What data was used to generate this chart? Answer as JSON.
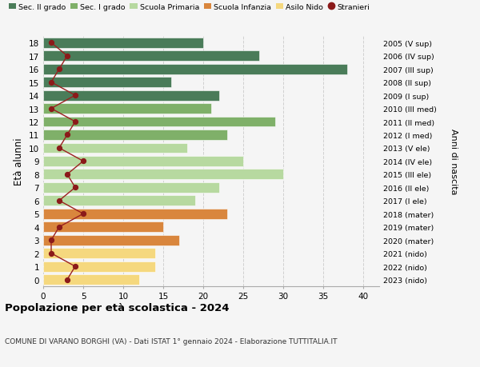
{
  "ages": [
    18,
    17,
    16,
    15,
    14,
    13,
    12,
    11,
    10,
    9,
    8,
    7,
    6,
    5,
    4,
    3,
    2,
    1,
    0
  ],
  "right_labels": [
    "2005 (V sup)",
    "2006 (IV sup)",
    "2007 (III sup)",
    "2008 (II sup)",
    "2009 (I sup)",
    "2010 (III med)",
    "2011 (II med)",
    "2012 (I med)",
    "2013 (V ele)",
    "2014 (IV ele)",
    "2015 (III ele)",
    "2016 (II ele)",
    "2017 (I ele)",
    "2018 (mater)",
    "2019 (mater)",
    "2020 (mater)",
    "2021 (nido)",
    "2022 (nido)",
    "2023 (nido)"
  ],
  "bar_values": [
    20,
    27,
    38,
    16,
    22,
    21,
    29,
    23,
    18,
    25,
    30,
    22,
    19,
    23,
    15,
    17,
    14,
    14,
    12
  ],
  "bar_colors": [
    "#4a7c59",
    "#4a7c59",
    "#4a7c59",
    "#4a7c59",
    "#4a7c59",
    "#7fb069",
    "#7fb069",
    "#7fb069",
    "#b7d9a0",
    "#b7d9a0",
    "#b7d9a0",
    "#b7d9a0",
    "#b7d9a0",
    "#d9863d",
    "#d9863d",
    "#d9863d",
    "#f5d87e",
    "#f5d87e",
    "#f5d87e"
  ],
  "stranieri_values": [
    1,
    3,
    2,
    1,
    4,
    1,
    4,
    3,
    2,
    5,
    3,
    4,
    2,
    5,
    2,
    1,
    1,
    4,
    3
  ],
  "legend_labels": [
    "Sec. II grado",
    "Sec. I grado",
    "Scuola Primaria",
    "Scuola Infanzia",
    "Asilo Nido",
    "Stranieri"
  ],
  "legend_colors": [
    "#4a7c59",
    "#7fb069",
    "#b7d9a0",
    "#d9863d",
    "#f5d87e",
    "#8b1a1a"
  ],
  "ylabel": "Età alunni",
  "right_ylabel": "Anni di nascita",
  "title": "Popolazione per età scolastica - 2024",
  "subtitle": "COMUNE DI VARANO BORGHI (VA) - Dati ISTAT 1° gennaio 2024 - Elaborazione TUTTITALIA.IT",
  "xlim": [
    0,
    42
  ],
  "background_color": "#f5f5f5",
  "grid_color": "#d0d0d0",
  "stranieri_dot_color": "#8b1a1a",
  "stranieri_line_color": "#9b2020"
}
